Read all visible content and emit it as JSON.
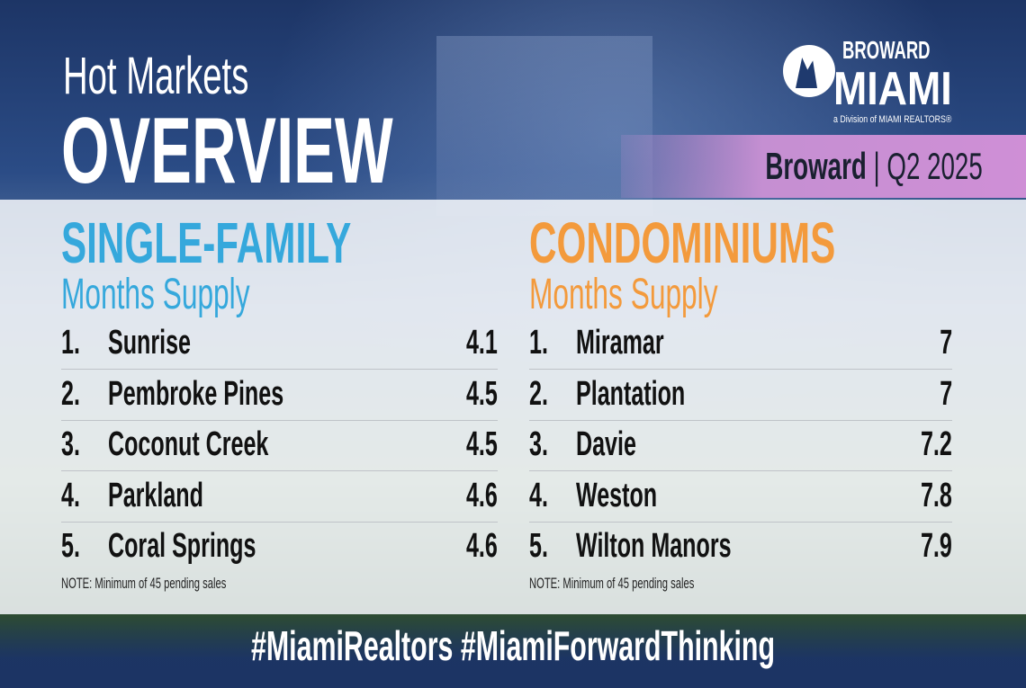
{
  "header": {
    "title_line1": "Hot Markets",
    "title_line2": "OVERVIEW",
    "region": "Broward",
    "period": "Q2 2025"
  },
  "logo": {
    "top": "BROWARD",
    "main": "MIAMI",
    "tagline": "a Division of MIAMI REALTORS®"
  },
  "colors": {
    "single_family": "#35a8dc",
    "condominiums": "#f39a3c",
    "purple_band": "#c98fd4",
    "header": "#1f3a6e"
  },
  "single_family": {
    "title": "SINGLE-FAMILY",
    "subtitle": "Months Supply",
    "rows": [
      {
        "rank": "1.",
        "name": "Sunrise",
        "value": "4.1"
      },
      {
        "rank": "2.",
        "name": "Pembroke Pines",
        "value": "4.5"
      },
      {
        "rank": "3.",
        "name": "Coconut Creek",
        "value": "4.5"
      },
      {
        "rank": "4.",
        "name": "Parkland",
        "value": "4.6"
      },
      {
        "rank": "5.",
        "name": "Coral Springs",
        "value": "4.6"
      }
    ],
    "note": "NOTE: Minimum of 45 pending sales"
  },
  "condominiums": {
    "title": "CONDOMINIUMS",
    "subtitle": "Months Supply",
    "rows": [
      {
        "rank": "1.",
        "name": "Miramar",
        "value": "7"
      },
      {
        "rank": "2.",
        "name": "Plantation",
        "value": "7"
      },
      {
        "rank": "3.",
        "name": "Davie",
        "value": "7.2"
      },
      {
        "rank": "4.",
        "name": "Weston",
        "value": "7.8"
      },
      {
        "rank": "5.",
        "name": "Wilton Manors",
        "value": "7.9"
      }
    ],
    "note": "NOTE: Minimum of 45 pending sales"
  },
  "footer": {
    "hashtags": "#MiamiRealtors #MiamiForwardThinking"
  }
}
